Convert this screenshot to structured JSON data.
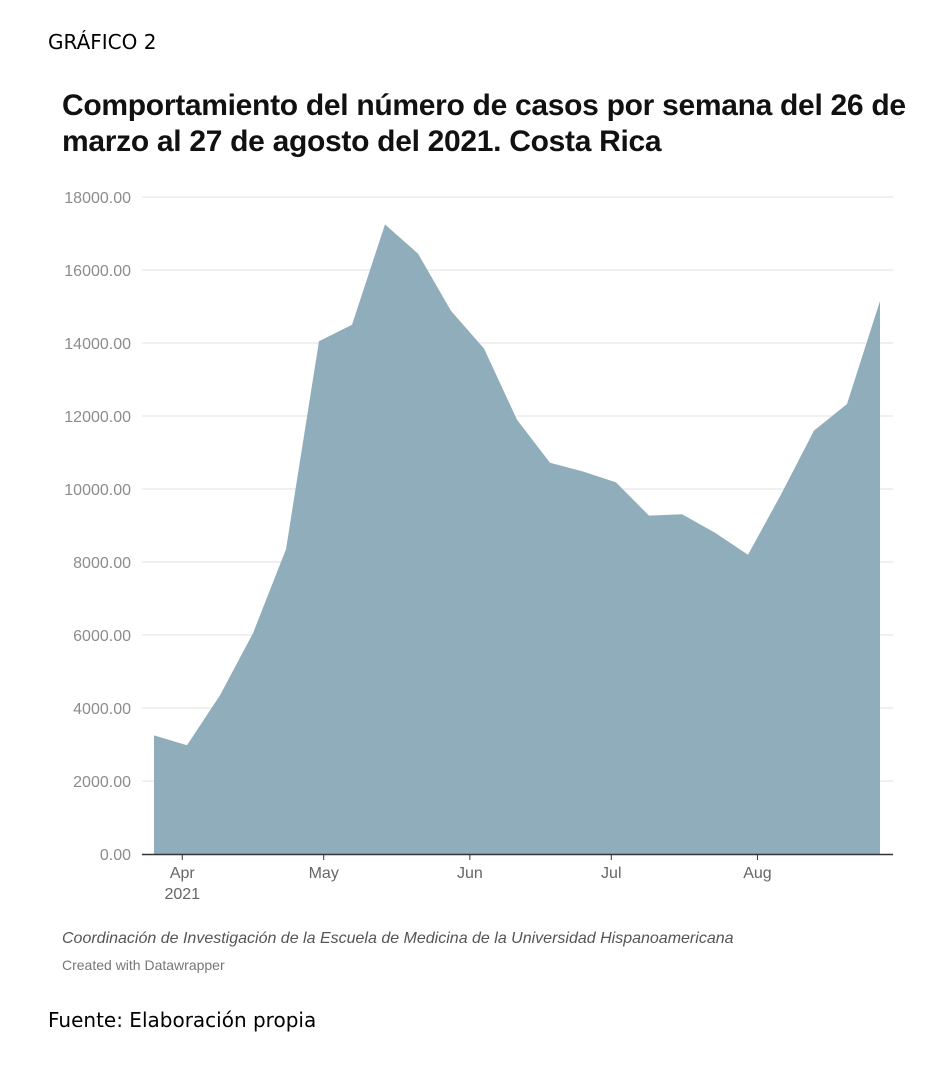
{
  "header": {
    "figure_label": "GRÁFICO 2",
    "title": "Comportamiento del número de casos por semana del 26 de marzo al 27 de agosto del 2021. Costa Rica"
  },
  "footer": {
    "note": "Coordinación de Investigación de la Escuela de Medicina de la Universidad Hispanoamericana",
    "credit": "Created with Datawrapper",
    "source": "Fuente: Elaboración propia"
  },
  "chart_data": {
    "type": "area",
    "title": "Comportamiento del número de casos por semana del 26 de marzo al 27 de agosto del 2021. Costa Rica",
    "xlabel": "",
    "ylabel": "",
    "x": [
      "2021-03-26",
      "2021-04-02",
      "2021-04-09",
      "2021-04-16",
      "2021-04-23",
      "2021-04-30",
      "2021-05-07",
      "2021-05-14",
      "2021-05-21",
      "2021-05-28",
      "2021-06-04",
      "2021-06-11",
      "2021-06-18",
      "2021-06-25",
      "2021-07-02",
      "2021-07-09",
      "2021-07-16",
      "2021-07-23",
      "2021-07-30",
      "2021-08-06",
      "2021-08-13",
      "2021-08-20",
      "2021-08-27"
    ],
    "values": [
      3250,
      2980,
      4350,
      6050,
      8350,
      14050,
      14500,
      17250,
      16450,
      14880,
      13850,
      11900,
      10720,
      10480,
      10180,
      9270,
      9310,
      8800,
      8200,
      9850,
      11600,
      12330,
      15150
    ],
    "series_color": "#8fadba",
    "ylim": [
      0,
      18000
    ],
    "y_ticks": [
      "18000.00",
      "16000.00",
      "14000.00",
      "12000.00",
      "10000.00",
      "8000.00",
      "6000.00",
      "4000.00",
      "2000.00",
      "0.00"
    ],
    "x_ticks": [
      {
        "label": "Apr",
        "sublabel": "2021",
        "date": "2021-04-01"
      },
      {
        "label": "May",
        "sublabel": "",
        "date": "2021-05-01"
      },
      {
        "label": "Jun",
        "sublabel": "",
        "date": "2021-06-01"
      },
      {
        "label": "Jul",
        "sublabel": "",
        "date": "2021-07-01"
      },
      {
        "label": "Aug",
        "sublabel": "",
        "date": "2021-08-01"
      }
    ],
    "grid": true
  }
}
